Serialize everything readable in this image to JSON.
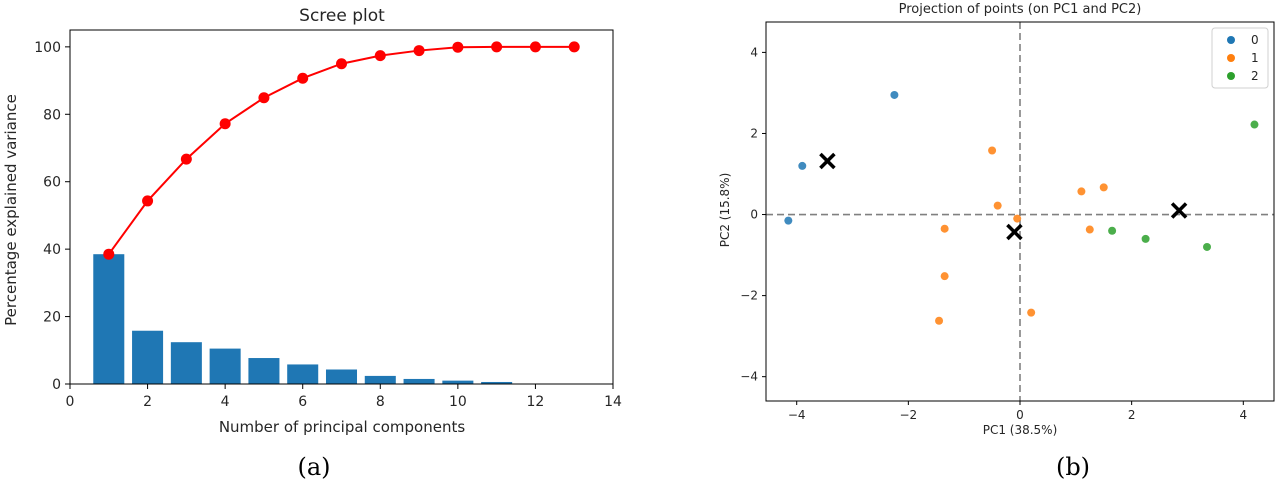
{
  "chart_data": [
    {
      "type": "bar",
      "title": "Scree plot",
      "xlabel": "Number of principal components",
      "ylabel": "Percentage explained variance",
      "xlim": [
        0,
        14
      ],
      "ylim": [
        0,
        105
      ],
      "xticks": [
        0,
        2,
        4,
        6,
        8,
        10,
        12,
        14
      ],
      "yticks": [
        0,
        20,
        40,
        60,
        80,
        100
      ],
      "categories": [
        1,
        2,
        3,
        4,
        5,
        6,
        7,
        8,
        9,
        10,
        11,
        12,
        13
      ],
      "series": [
        {
          "type": "bar",
          "color": "#1f77b4",
          "values": [
            38.5,
            15.8,
            12.4,
            10.5,
            7.7,
            5.8,
            4.3,
            2.4,
            1.5,
            1.0,
            0.6,
            0.1,
            0.0
          ]
        },
        {
          "type": "line",
          "color": "#ff0000",
          "values": [
            38.5,
            54.3,
            66.7,
            77.2,
            84.9,
            90.7,
            95.0,
            97.4,
            98.9,
            99.9,
            100.0,
            100.0,
            100.0
          ]
        }
      ],
      "grid": false,
      "caption": "(a)"
    },
    {
      "type": "scatter",
      "title": "Projection of points (on PC1 and PC2)",
      "xlabel": "PC1 (38.5%)",
      "ylabel": "PC2 (15.8%)",
      "xlim": [
        -4.55,
        4.55
      ],
      "ylim": [
        -4.6,
        4.75
      ],
      "xticks": [
        -4,
        -2,
        0,
        2,
        4
      ],
      "yticks": [
        -4,
        -2,
        0,
        2,
        4
      ],
      "legend_position": "top-right",
      "series": [
        {
          "name": "0",
          "color": "#1f77b4",
          "points": [
            [
              -3.9,
              1.2
            ],
            [
              -4.15,
              -0.15
            ],
            [
              -2.25,
              2.95
            ]
          ]
        },
        {
          "name": "1",
          "color": "#ff7f0e",
          "points": [
            [
              -0.5,
              1.58
            ],
            [
              -0.4,
              0.22
            ],
            [
              -1.35,
              -0.35
            ],
            [
              -1.35,
              -1.52
            ],
            [
              -1.45,
              -2.62
            ],
            [
              -0.05,
              -0.1
            ],
            [
              0.2,
              -2.42
            ],
            [
              1.1,
              0.57
            ],
            [
              1.25,
              -0.37
            ],
            [
              1.5,
              0.67
            ]
          ]
        },
        {
          "name": "2",
          "color": "#2ca02c",
          "points": [
            [
              1.65,
              -0.4
            ],
            [
              2.25,
              -0.6
            ],
            [
              3.35,
              -0.8
            ],
            [
              4.2,
              2.22
            ]
          ]
        }
      ],
      "centroids": [
        [
          -3.45,
          1.32
        ],
        [
          -0.1,
          -0.43
        ],
        [
          2.85,
          0.1
        ]
      ],
      "reference_lines": {
        "x": 0,
        "y": 0,
        "style": "dashed"
      },
      "grid": false,
      "caption": "(b)"
    }
  ]
}
